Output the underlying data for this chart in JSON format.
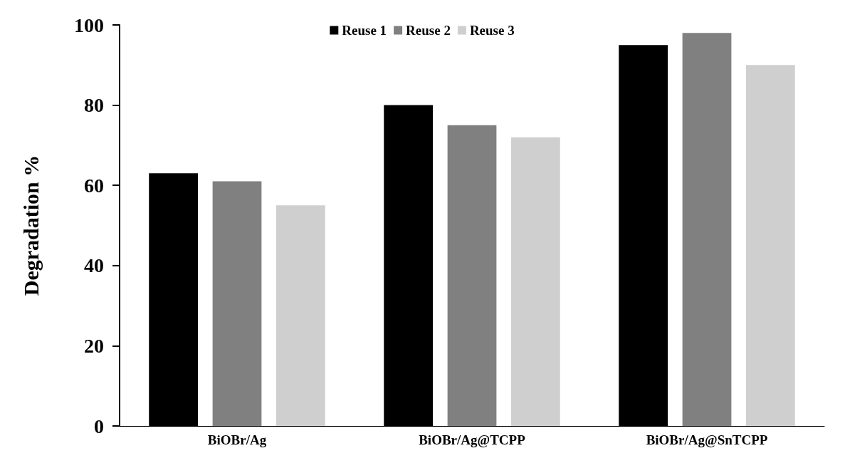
{
  "chart_data": {
    "type": "bar",
    "ylabel": "Degradation %",
    "categories": [
      "BiOBr/Ag",
      "BiOBr/Ag@TCPP",
      "BiOBr/Ag@SnTCPP"
    ],
    "series": [
      {
        "name": "Reuse 1",
        "color": "#000000",
        "values": [
          63,
          80,
          95
        ]
      },
      {
        "name": "Reuse 2",
        "color": "#808080",
        "values": [
          61,
          75,
          98
        ]
      },
      {
        "name": "Reuse 3",
        "color": "#d0cfd0",
        "values": [
          55,
          72,
          90
        ]
      }
    ],
    "ylim": [
      0,
      100
    ],
    "yticks": [
      0,
      20,
      40,
      60,
      80,
      100
    ],
    "grid": false,
    "legend": "top"
  }
}
